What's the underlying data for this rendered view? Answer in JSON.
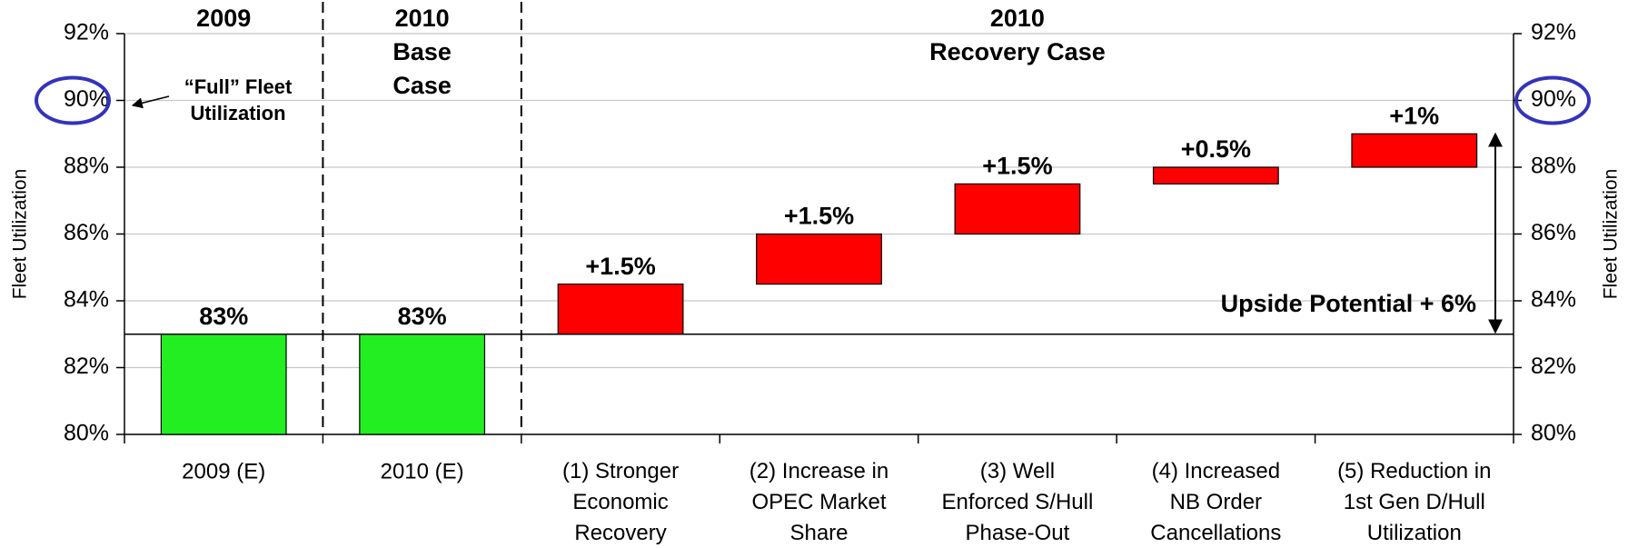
{
  "chart_data": {
    "type": "waterfall",
    "section_headers": [
      "2009",
      "2010\nBase\nCase",
      "2010\nRecovery Case"
    ],
    "categories": [
      "2009 (E)",
      "2010 (E)",
      "(1) Stronger\nEconomic\nRecovery",
      "(2) Increase in\nOPEC Market\nShare",
      "(3) Well\nEnforced S/Hull\nPhase-Out",
      "(4) Increased\nNB Order\nCancellations",
      "(5) Reduction in\n1st Gen D/Hull\nUtilization"
    ],
    "values": [
      83,
      83,
      1.5,
      1.5,
      1.5,
      0.5,
      1
    ],
    "value_labels": [
      "83%",
      "83%",
      "+1.5%",
      "+1.5%",
      "+1.5%",
      "+0.5%",
      "+1%"
    ],
    "measure": [
      "absolute",
      "absolute",
      "relative",
      "relative",
      "relative",
      "relative",
      "relative"
    ],
    "colors": [
      "#22ee22",
      "#22ee22",
      "#ff0000",
      "#ff0000",
      "#ff0000",
      "#ff0000",
      "#ff0000"
    ],
    "ylabel": "Fleet Utilization",
    "y2label": "Fleet Utilization",
    "ylim": [
      80,
      92
    ],
    "yticks": [
      {
        "value": 80,
        "label": "80%"
      },
      {
        "value": 82,
        "label": "82%"
      },
      {
        "value": 84,
        "label": "84%"
      },
      {
        "value": 86,
        "label": "86%"
      },
      {
        "value": 88,
        "label": "88%"
      },
      {
        "value": 90,
        "label": "90%"
      },
      {
        "value": 92,
        "label": "92%"
      }
    ],
    "y2lim": [
      80,
      92
    ],
    "y2ticks": [
      {
        "value": 80,
        "label": "80%"
      },
      {
        "value": 82,
        "label": "82%"
      },
      {
        "value": 84,
        "label": "84%"
      },
      {
        "value": 86,
        "label": "86%"
      },
      {
        "value": 88,
        "label": "88%"
      },
      {
        "value": 90,
        "label": "90%"
      },
      {
        "value": 92,
        "label": "92%"
      }
    ],
    "grid": true,
    "annotations": [
      "“Full” Fleet\nUtilization",
      "Upside Potential + 6%"
    ]
  }
}
